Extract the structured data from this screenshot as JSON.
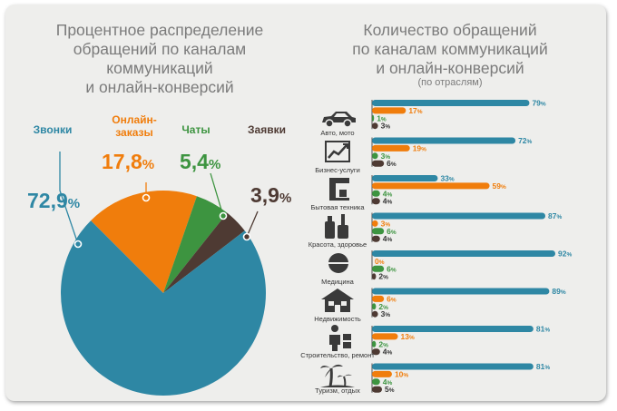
{
  "left": {
    "title": "Процентное распределение\nобращений по каналам\nкоммуникаций\nи онлайн-конверсий"
  },
  "right": {
    "title": "Количество обращений\nпо каналам коммуникаций\nи онлайн-конверсий",
    "subtitle": "(по отраслям)"
  },
  "colors": {
    "calls": "#2e87a4",
    "orders": "#f07d0c",
    "chats": "#3d9440",
    "requests": "#4e3a33"
  },
  "chart_data": [
    {
      "type": "pie",
      "labels": [
        "Звонки",
        "Онлайн-\nзаказы",
        "Чаты",
        "Заявки"
      ],
      "values": [
        72.9,
        17.8,
        5.4,
        3.9
      ],
      "value_labels": [
        "72,9",
        "17,8",
        "5,4",
        "3,9"
      ],
      "unit": "%",
      "colors": [
        "#2e87a4",
        "#f07d0c",
        "#3d9440",
        "#4e3a33"
      ]
    },
    {
      "type": "bar",
      "orientation": "horizontal",
      "categories": [
        "Авто, мото",
        "Бизнес-услуги",
        "Бытовая техника",
        "Красота, здоровье",
        "Медицина",
        "Недвижимость",
        "Строительство, ремонт",
        "Туризм, отдых"
      ],
      "icons": [
        "car-icon",
        "chart-icon",
        "coffee-machine-icon",
        "cosmetics-icon",
        "pills-icon",
        "house-icon",
        "worker-icon",
        "palm-icon"
      ],
      "series": [
        {
          "values": [
            79,
            72,
            33,
            87,
            92,
            89,
            81,
            81
          ],
          "color": "#2e87a4"
        },
        {
          "values": [
            17,
            19,
            59,
            3,
            0,
            6,
            13,
            10
          ],
          "color": "#f07d0c"
        },
        {
          "values": [
            1,
            3,
            4,
            6,
            6,
            2,
            2,
            4
          ],
          "color": "#3d9440"
        },
        {
          "values": [
            3,
            6,
            4,
            4,
            2,
            3,
            4,
            5
          ],
          "color": "#4e3a33"
        }
      ],
      "unit": "%",
      "xlim": [
        0,
        100
      ]
    }
  ]
}
